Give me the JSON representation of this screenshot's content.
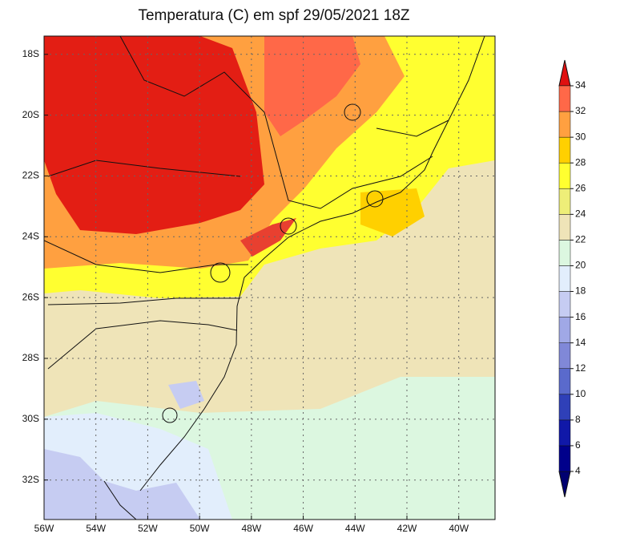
{
  "title": "Temperatura (C) em spf 29/05/2021 18Z",
  "map": {
    "xlim": [
      -56,
      -38.6
    ],
    "ylim": [
      -17.4,
      -33.3
    ],
    "xticks": [
      {
        "value": -56,
        "label": "56W"
      },
      {
        "value": -54,
        "label": "54W"
      },
      {
        "value": -52,
        "label": "52W"
      },
      {
        "value": -50,
        "label": "50W"
      },
      {
        "value": -48,
        "label": "48W"
      },
      {
        "value": -46,
        "label": "46W"
      },
      {
        "value": -44,
        "label": "44W"
      },
      {
        "value": -42,
        "label": "42W"
      },
      {
        "value": -40,
        "label": "40W"
      }
    ],
    "yticks": [
      {
        "value": -18,
        "label": "18S"
      },
      {
        "value": -20,
        "label": "20S"
      },
      {
        "value": -22,
        "label": "22S"
      },
      {
        "value": -24,
        "label": "24S"
      },
      {
        "value": -26,
        "label": "26S"
      },
      {
        "value": -28,
        "label": "28S"
      },
      {
        "value": -30,
        "label": "30S"
      },
      {
        "value": -32,
        "label": "32S"
      }
    ],
    "grid": true
  },
  "colorbar": {
    "levels": [
      4,
      6,
      8,
      10,
      12,
      14,
      16,
      18,
      20,
      22,
      24,
      26,
      28,
      30,
      32,
      34
    ],
    "colors": [
      "#000070",
      "#00008b",
      "#1018a8",
      "#2f40b8",
      "#5a6acc",
      "#8088d8",
      "#a0a8e6",
      "#c6ccf2",
      "#e2eefc",
      "#dcf7e0",
      "#efe4b8",
      "#eeee78",
      "#ffff30",
      "#ffd000",
      "#ffa040",
      "#ff6848",
      "#e01010"
    ]
  }
}
